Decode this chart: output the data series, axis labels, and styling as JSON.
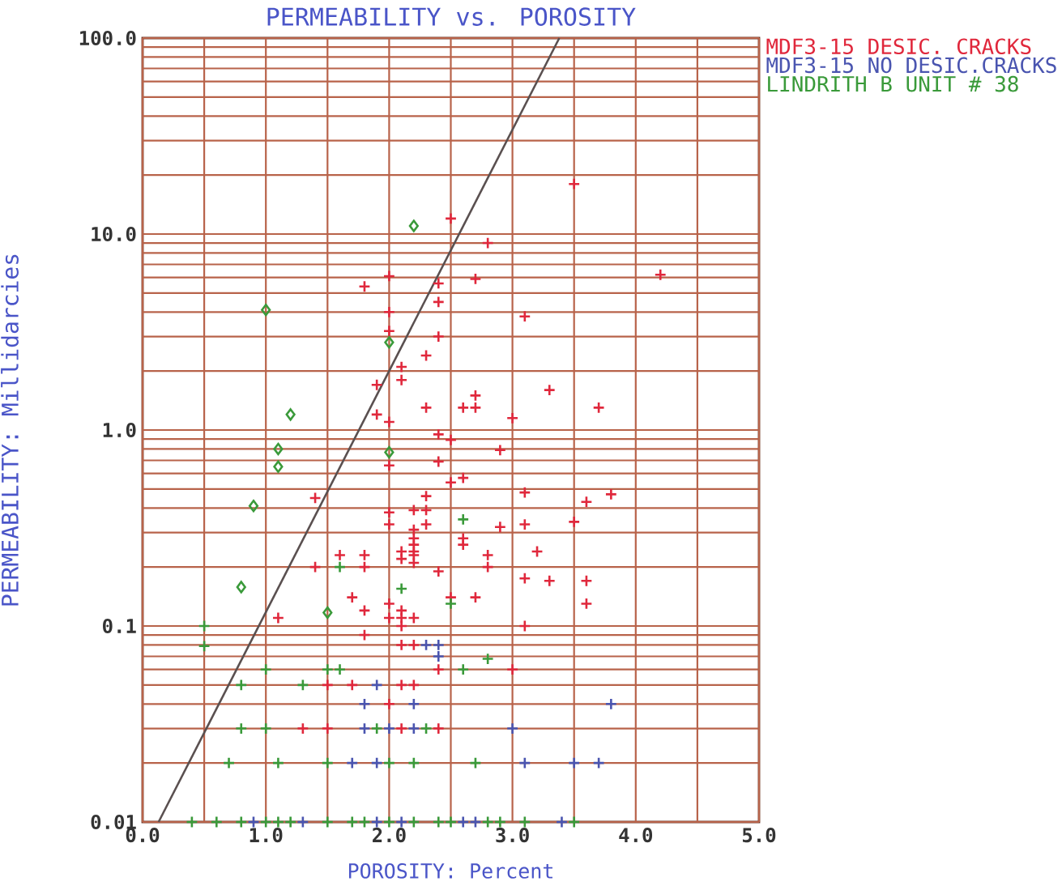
{
  "chart_data": {
    "type": "scatter",
    "title": "PERMEABILITY vs. POROSITY",
    "xlabel": "POROSITY: Percent",
    "ylabel": "PERMEABILITY: Millidarcies",
    "xlim": [
      0,
      5
    ],
    "ylim": [
      0.01,
      100
    ],
    "log": "y",
    "grid": true,
    "legend": "top right",
    "xticks": [
      {
        "value": 0,
        "label": "0.0"
      },
      {
        "value": 0.5,
        "label": null
      },
      {
        "value": 1,
        "label": "1.0"
      },
      {
        "value": 1.5,
        "label": null
      },
      {
        "value": 2,
        "label": "2.0"
      },
      {
        "value": 2.5,
        "label": null
      },
      {
        "value": 3,
        "label": "3.0"
      },
      {
        "value": 3.5,
        "label": null
      },
      {
        "value": 4,
        "label": "4.0"
      },
      {
        "value": 4.5,
        "label": null
      },
      {
        "value": 5,
        "label": "5.0"
      }
    ],
    "yticks": [
      {
        "value": 0.01,
        "label": "0.01"
      },
      {
        "value": 0.02,
        "label": null
      },
      {
        "value": 0.03,
        "label": null
      },
      {
        "value": 0.04,
        "label": null
      },
      {
        "value": 0.05,
        "label": null
      },
      {
        "value": 0.06,
        "label": null
      },
      {
        "value": 0.07,
        "label": null
      },
      {
        "value": 0.08,
        "label": null
      },
      {
        "value": 0.09,
        "label": null
      },
      {
        "value": 0.1,
        "label": "0.1"
      },
      {
        "value": 0.2,
        "label": null
      },
      {
        "value": 0.3,
        "label": null
      },
      {
        "value": 0.4,
        "label": null
      },
      {
        "value": 0.5,
        "label": null
      },
      {
        "value": 0.6,
        "label": null
      },
      {
        "value": 0.7,
        "label": null
      },
      {
        "value": 0.8,
        "label": null
      },
      {
        "value": 0.9,
        "label": null
      },
      {
        "value": 1,
        "label": "1.0"
      },
      {
        "value": 2,
        "label": null
      },
      {
        "value": 3,
        "label": null
      },
      {
        "value": 4,
        "label": null
      },
      {
        "value": 5,
        "label": null
      },
      {
        "value": 6,
        "label": null
      },
      {
        "value": 7,
        "label": null
      },
      {
        "value": 8,
        "label": null
      },
      {
        "value": 9,
        "label": null
      },
      {
        "value": 10,
        "label": "10.0"
      },
      {
        "value": 20,
        "label": null
      },
      {
        "value": 30,
        "label": null
      },
      {
        "value": 40,
        "label": null
      },
      {
        "value": 50,
        "label": null
      },
      {
        "value": 60,
        "label": null
      },
      {
        "value": 70,
        "label": null
      },
      {
        "value": 80,
        "label": null
      },
      {
        "value": 90,
        "label": null
      },
      {
        "value": 100,
        "label": "100.0"
      }
    ],
    "series": [
      {
        "name": "MDF3-15 DESIC. CRACKS",
        "color": "#e0283c",
        "marker": "cross",
        "x": [
          3.5,
          2.5,
          2.8,
          4.2,
          2.0,
          1.8,
          2.4,
          2.7,
          2.4,
          2.0,
          3.1,
          2.0,
          2.4,
          2.3,
          2.1,
          2.1,
          1.9,
          3.3,
          2.7,
          1.9,
          2.3,
          2.6,
          2.7,
          3.7,
          3.0,
          2.0,
          2.4,
          2.5,
          2.9,
          2.4,
          2.0,
          2.6,
          2.5,
          3.1,
          3.8,
          2.3,
          3.6,
          1.4,
          2.2,
          2.3,
          2.0,
          3.1,
          3.5,
          2.3,
          2.0,
          2.9,
          2.2,
          2.2,
          2.6,
          2.6,
          3.2,
          2.1,
          2.1,
          2.2,
          2.2,
          2.2,
          2.2,
          1.6,
          1.8,
          1.8,
          2.8,
          2.8,
          1.4,
          2.4,
          3.1,
          3.3,
          3.6,
          3.6,
          1.7,
          2.0,
          2.5,
          2.7,
          1.8,
          2.0,
          2.1,
          2.1,
          2.1,
          2.2,
          1.1,
          1.8,
          2.1,
          2.2,
          2.4,
          3.0,
          3.1,
          2.0,
          2.1,
          2.2,
          1.5,
          1.7,
          2.1,
          1.5,
          1.3,
          2.4
        ],
        "values": [
          18,
          12,
          9,
          6.2,
          6.1,
          5.4,
          5.6,
          5.9,
          4.5,
          4.0,
          3.8,
          3.2,
          3.0,
          2.4,
          2.1,
          1.8,
          1.7,
          1.6,
          1.5,
          1.2,
          1.3,
          1.3,
          1.3,
          1.3,
          1.15,
          1.1,
          0.95,
          0.89,
          0.79,
          0.69,
          0.66,
          0.57,
          0.54,
          0.48,
          0.47,
          0.46,
          0.43,
          0.45,
          0.39,
          0.39,
          0.38,
          0.33,
          0.34,
          0.33,
          0.33,
          0.32,
          0.31,
          0.28,
          0.28,
          0.26,
          0.24,
          0.24,
          0.22,
          0.26,
          0.24,
          0.23,
          0.21,
          0.23,
          0.23,
          0.2,
          0.23,
          0.2,
          0.2,
          0.19,
          0.175,
          0.17,
          0.17,
          0.13,
          0.14,
          0.13,
          0.14,
          0.14,
          0.12,
          0.11,
          0.12,
          0.11,
          0.1,
          0.11,
          0.11,
          0.09,
          0.08,
          0.08,
          0.06,
          0.06,
          0.1,
          0.04,
          0.05,
          0.05,
          0.05,
          0.05,
          0.03,
          0.03,
          0.03,
          0.03
        ]
      },
      {
        "name": "MDF3-15 NO DESIC.CRACKS",
        "color": "#4a55b0",
        "marker": "cross",
        "x": [
          2.3,
          2.4,
          2.4,
          1.9,
          1.8,
          2.2,
          3.8,
          1.8,
          2.0,
          2.2,
          3.0,
          1.7,
          1.9,
          3.1,
          3.5,
          3.7,
          0.9,
          1.3,
          1.9,
          2.1,
          2.6,
          2.7,
          3.4
        ],
        "values": [
          0.08,
          0.08,
          0.07,
          0.05,
          0.04,
          0.04,
          0.04,
          0.03,
          0.03,
          0.03,
          0.03,
          0.02,
          0.02,
          0.02,
          0.02,
          0.02,
          0.01,
          0.01,
          0.01,
          0.01,
          0.01,
          0.01,
          0.01
        ]
      },
      {
        "name": "LINDRITH B UNIT # 38",
        "color": "#3a9a3a",
        "marker": "cross",
        "x": [
          2.6,
          1.6,
          2.1,
          2.5,
          2.8,
          2.6,
          1.6,
          1.5,
          1.0,
          0.5,
          0.5,
          0.8,
          1.3,
          0.8,
          1.0,
          1.9,
          2.3,
          0.7,
          1.1,
          1.5,
          2.0,
          2.2,
          2.7,
          0.4,
          0.6,
          0.8,
          1.0,
          1.1,
          1.2,
          1.5,
          1.7,
          1.8,
          2.0,
          2.2,
          2.4,
          2.5,
          2.8,
          2.9,
          3.1,
          3.5
        ],
        "values": [
          0.35,
          0.2,
          0.155,
          0.13,
          0.068,
          0.06,
          0.06,
          0.06,
          0.06,
          0.1,
          0.079,
          0.05,
          0.05,
          0.03,
          0.03,
          0.03,
          0.03,
          0.02,
          0.02,
          0.02,
          0.02,
          0.02,
          0.02,
          0.01,
          0.01,
          0.01,
          0.01,
          0.01,
          0.01,
          0.01,
          0.01,
          0.01,
          0.01,
          0.01,
          0.01,
          0.01,
          0.01,
          0.01,
          0.01,
          0.01
        ]
      },
      {
        "color": "#3a9a3a",
        "marker": "diamond",
        "x": [
          2.2,
          1.0,
          2.0,
          1.2,
          1.1,
          1.1,
          2.0,
          0.9,
          0.8,
          1.5
        ],
        "values": [
          11,
          4.1,
          2.8,
          1.2,
          0.8,
          0.65,
          0.77,
          0.41,
          0.158,
          0.117
        ]
      },
      {
        "type": "line",
        "color": "#5a5050",
        "marker": "none",
        "line_style": "solid",
        "x": [
          0.13,
          3.38
        ],
        "values": [
          0.01,
          100
        ]
      }
    ]
  }
}
